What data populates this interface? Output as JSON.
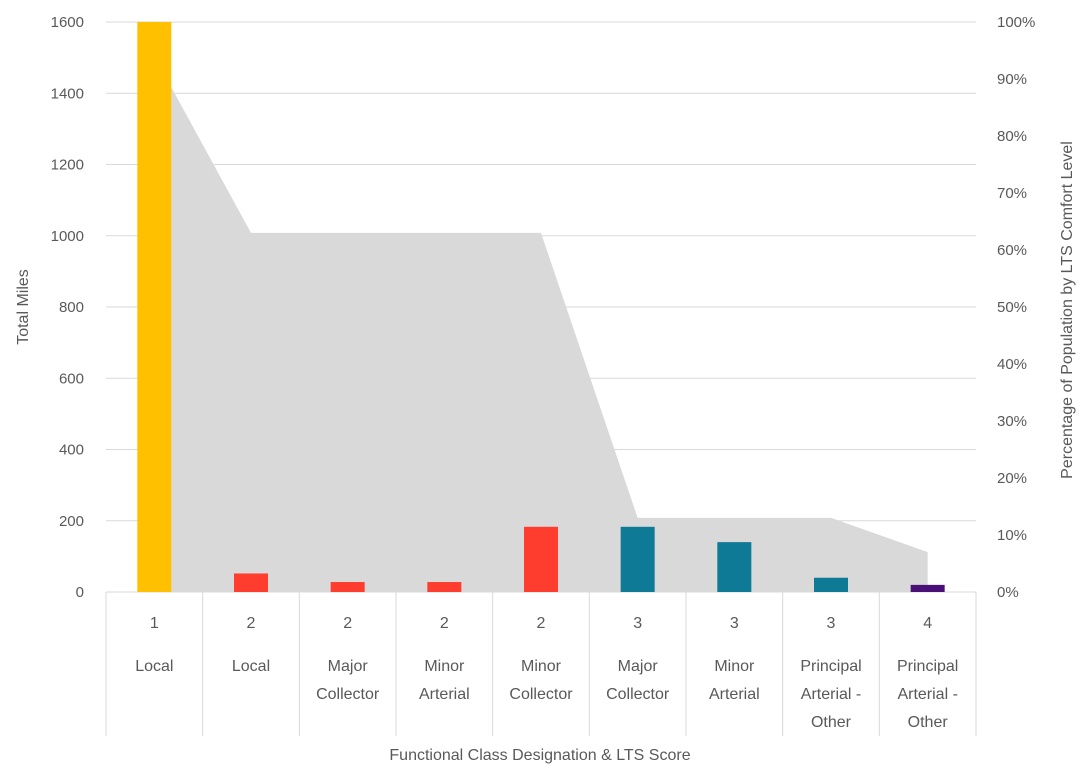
{
  "chart_data": {
    "type": "bar",
    "xlabel": "Functional Class Designation & LTS Score",
    "ylabel": "Total Miles",
    "y2label": "Percentage of Population by LTS Comfort Level",
    "ylim": [
      0,
      1600
    ],
    "yticks": [
      "0",
      "200",
      "400",
      "600",
      "800",
      "1000",
      "1200",
      "1400",
      "1600"
    ],
    "y2lim": [
      0,
      100
    ],
    "y2ticks": [
      "0%",
      "10%",
      "20%",
      "30%",
      "40%",
      "50%",
      "60%",
      "70%",
      "80%",
      "90%",
      "100%"
    ],
    "grid": true,
    "categories": [
      {
        "score": "1",
        "lines": [
          "Local"
        ]
      },
      {
        "score": "2",
        "lines": [
          "Local"
        ]
      },
      {
        "score": "2",
        "lines": [
          "Major",
          "Collector"
        ]
      },
      {
        "score": "2",
        "lines": [
          "Minor",
          "Arterial"
        ]
      },
      {
        "score": "2",
        "lines": [
          "Minor",
          "Collector"
        ]
      },
      {
        "score": "3",
        "lines": [
          "Major",
          "Collector"
        ]
      },
      {
        "score": "3",
        "lines": [
          "Minor",
          "Arterial"
        ]
      },
      {
        "score": "3",
        "lines": [
          "Principal",
          "Arterial -",
          "Other"
        ]
      },
      {
        "score": "4",
        "lines": [
          "Principal",
          "Arterial -",
          "Other"
        ]
      }
    ],
    "bar_values": [
      1600,
      52,
      28,
      28,
      183,
      183,
      140,
      40,
      20
    ],
    "bar_colors": [
      "#ffc000",
      "#ff3d2e",
      "#ff3d2e",
      "#ff3d2e",
      "#ff3d2e",
      "#0f7a96",
      "#0f7a96",
      "#0f7a96",
      "#4b0f78"
    ],
    "area_percent": [
      94,
      63,
      63,
      63,
      63,
      13,
      13,
      13,
      7
    ],
    "area_color": "#d9d9d9"
  }
}
